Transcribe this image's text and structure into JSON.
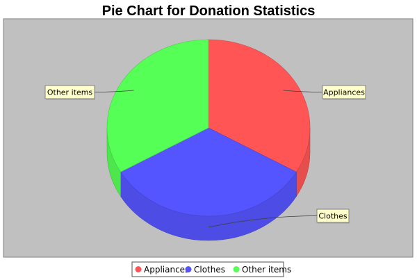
{
  "chart_data": {
    "type": "pie",
    "style": "3d",
    "title": "Pie Chart for Donation Statistics",
    "categories": [
      "Appliances",
      "Clothes",
      "Other items"
    ],
    "values": [
      33.3,
      33.3,
      33.3
    ],
    "legend_position": "bottom",
    "colors": {
      "Appliances": "#ff5555",
      "Clothes": "#5555ff",
      "Other items": "#55ff55",
      "plot_background": "#c0c0c0",
      "label_background": "#ffffcc"
    }
  }
}
